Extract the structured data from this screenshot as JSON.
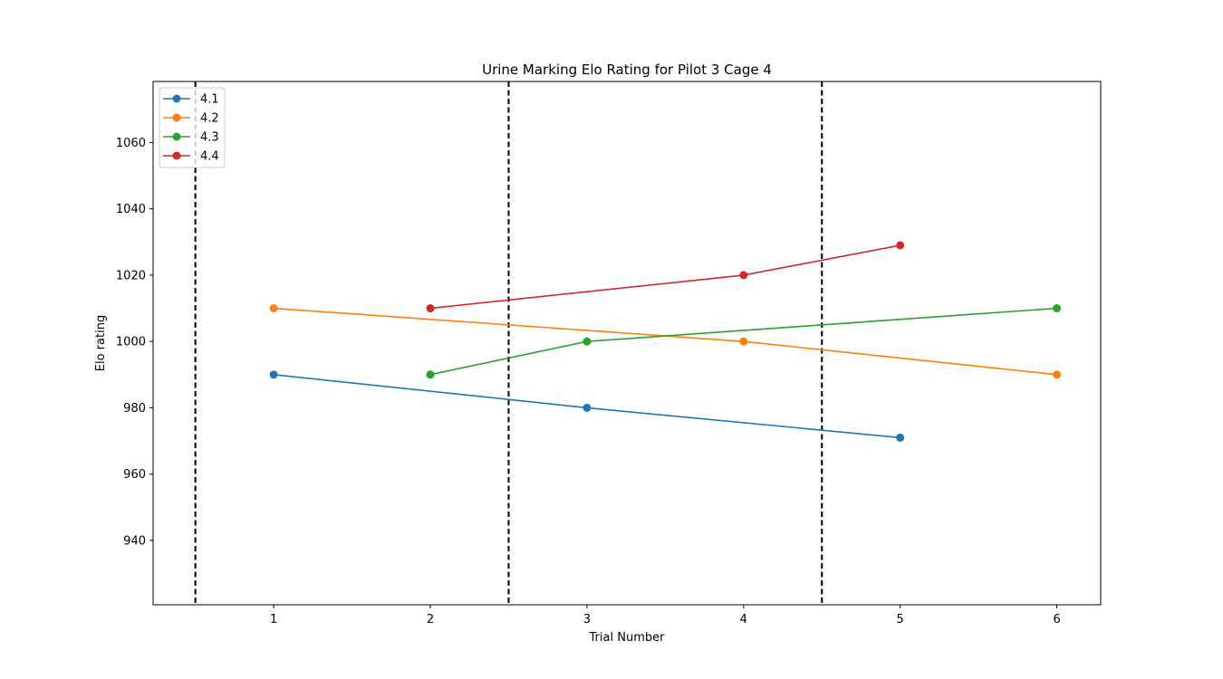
{
  "chart_data": {
    "type": "line",
    "title": "Urine Marking Elo Rating for Pilot 3 Cage 4",
    "xlabel": "Trial Number",
    "ylabel": "Elo rating",
    "xlim": [
      0.23,
      6.28
    ],
    "ylim": [
      920.6,
      1078.4
    ],
    "xticks": [
      1,
      2,
      3,
      4,
      5,
      6
    ],
    "yticks": [
      940,
      960,
      980,
      1000,
      1020,
      1040,
      1060
    ],
    "vlines": [
      0.5,
      2.5,
      4.5
    ],
    "grid": false,
    "legend_position": "upper-left",
    "series": [
      {
        "name": "4.1",
        "color": "#1f77b4",
        "x": [
          1,
          3,
          5
        ],
        "y": [
          990,
          980,
          971
        ]
      },
      {
        "name": "4.2",
        "color": "#ff7f0e",
        "x": [
          1,
          4,
          6
        ],
        "y": [
          1010,
          1000,
          990
        ]
      },
      {
        "name": "4.3",
        "color": "#2ca02c",
        "x": [
          2,
          3,
          6
        ],
        "y": [
          990,
          1000,
          1010
        ]
      },
      {
        "name": "4.4",
        "color": "#d62728",
        "x": [
          2,
          4,
          5
        ],
        "y": [
          1010,
          1020,
          1029
        ]
      }
    ]
  }
}
